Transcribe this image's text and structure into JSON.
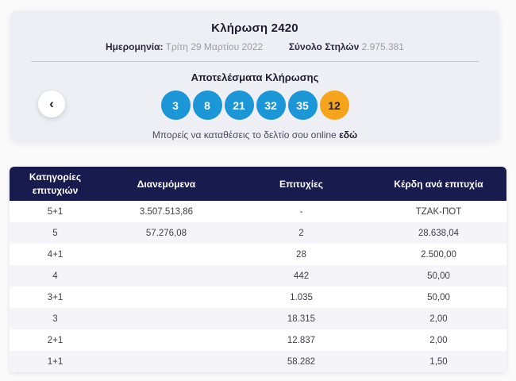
{
  "draw": {
    "title": "Κλήρωση 2420",
    "date_label": "Ημερομηνία:",
    "date_value": "Τρίτη 29 Μαρτίου 2022",
    "total_columns_label": "Σύνολο Στηλών",
    "total_columns_value": "2.975.381"
  },
  "results": {
    "heading": "Αποτελέσματα Κλήρωσης",
    "numbers": [
      {
        "value": "3",
        "type": "main"
      },
      {
        "value": "8",
        "type": "main"
      },
      {
        "value": "21",
        "type": "main"
      },
      {
        "value": "32",
        "type": "main"
      },
      {
        "value": "35",
        "type": "main"
      },
      {
        "value": "12",
        "type": "bonus"
      }
    ],
    "online_text": "Μπορείς να καταθέσεις το δελτίο σου online",
    "online_link_label": "εδώ",
    "prev_button_icon": "‹"
  },
  "table": {
    "headers": [
      "Κατηγορίες επιτυχιών",
      "Διανεμόμενα",
      "Επιτυχίες",
      "Κέρδη ανά επιτυχία"
    ],
    "rows": [
      {
        "category": "5+1",
        "distributed": "3.507.513,86",
        "winners": "-",
        "prize": "ΤΖΑΚ-ΠΟΤ"
      },
      {
        "category": "5",
        "distributed": "57.276,08",
        "winners": "2",
        "prize": "28.638,04"
      },
      {
        "category": "4+1",
        "distributed": "",
        "winners": "28",
        "prize": "2.500,00"
      },
      {
        "category": "4",
        "distributed": "",
        "winners": "442",
        "prize": "50,00"
      },
      {
        "category": "3+1",
        "distributed": "",
        "winners": "1.035",
        "prize": "50,00"
      },
      {
        "category": "3",
        "distributed": "",
        "winners": "18.315",
        "prize": "2,00"
      },
      {
        "category": "2+1",
        "distributed": "",
        "winners": "12.837",
        "prize": "2,00"
      },
      {
        "category": "1+1",
        "distributed": "",
        "winners": "58.282",
        "prize": "1,50"
      }
    ]
  },
  "colors": {
    "main_number_blue": "#1b96d6",
    "bonus_number_orange": "#f7a41d",
    "table_header_navy": "#171b4d",
    "card_background": "#edeff4",
    "alt_row_background": "#f5f5f9"
  }
}
